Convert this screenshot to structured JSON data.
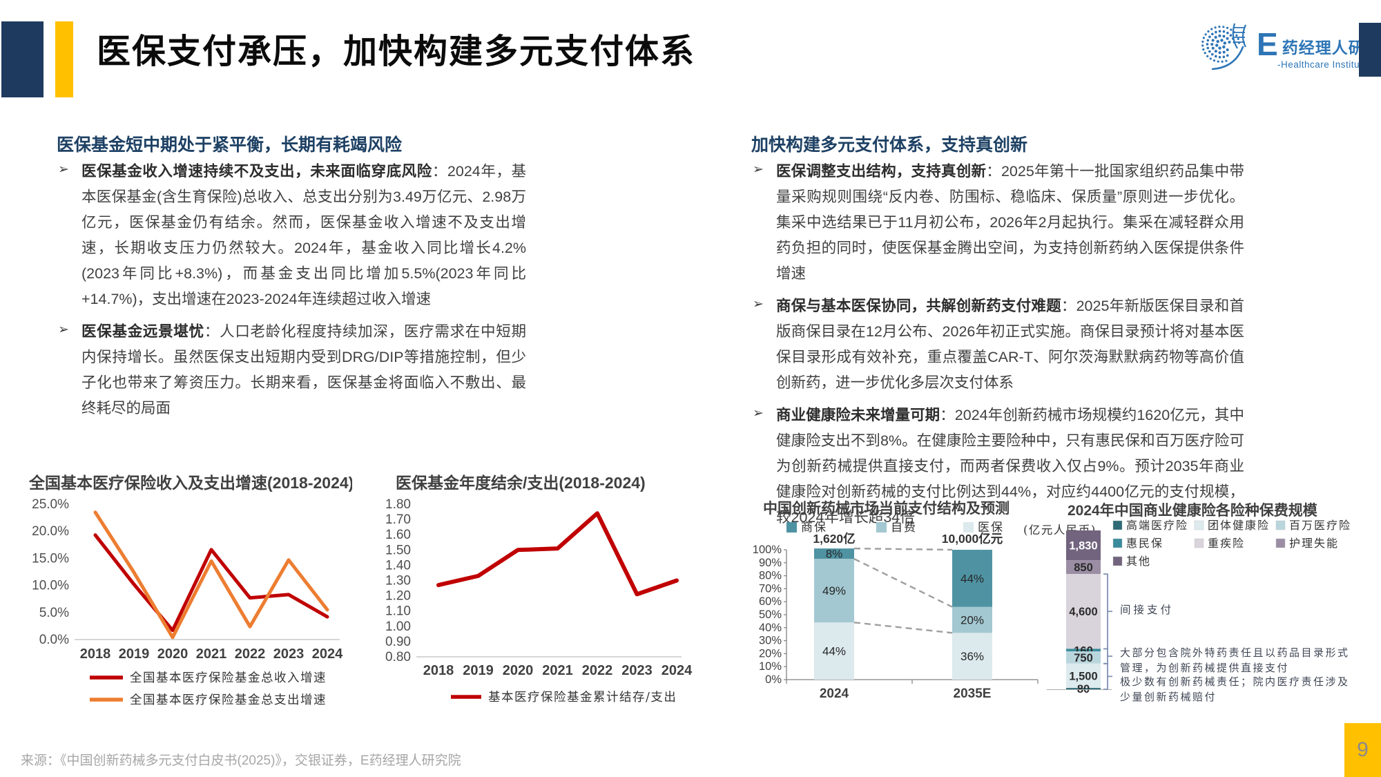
{
  "colors": {
    "navy_block": "#1F3A5F",
    "accent_yellow": "#FFC000",
    "logo_blue": "#2E75B6",
    "heading_blue": "#1E4164",
    "line_red": "#C00000",
    "line_orange": "#ED7D31"
  },
  "header": {
    "title": "医保支付承压，加快构建多元支付体系",
    "logo": {
      "e": "E",
      "cn": "药经理人研究院",
      "en": "-Healthcare Institute"
    }
  },
  "left_column": {
    "heading": "医保基金短中期处于紧平衡，长期有耗竭风险",
    "bullets": [
      {
        "marker": "➢",
        "lead": "医保基金收入增速持续不及支出，未来面临穿底风险",
        "text": "：2024年，基本医保基金(含生育保险)总收入、总支出分别为3.49万亿元、2.98万亿元，医保基金仍有结余。然而，医保基金收入增速不及支出增速，长期收支压力仍然较大。2024年，基金收入同比增长4.2%(2023年同比+8.3%)，而基金支出同比增加5.5%(2023年同比+14.7%)，支出增速在2023-2024年连续超过收入增速"
      },
      {
        "marker": "➢",
        "lead": "医保基金远景堪忧",
        "text": "：人口老龄化程度持续加深，医疗需求在中短期内保持增长。虽然医保支出短期内受到DRG/DIP等措施控制，但少子化也带来了筹资压力。长期来看，医保基金将面临入不敷出、最终耗尽的局面"
      }
    ]
  },
  "right_column": {
    "heading": "加快构建多元支付体系，支持真创新",
    "bullets": [
      {
        "marker": "➢",
        "lead": "医保调整支出结构，支持真创新",
        "text": "：2025年第十一批国家组织药品集中带量采购规则围绕“反内卷、防围标、稳临床、保质量”原则进一步优化。集采中选结果已于11月初公布，2026年2月起执行。集采在减轻群众用药负担的同时，使医保基金腾出空间，为支持创新药纳入医保提供条件增速"
      },
      {
        "marker": "➢",
        "lead": "商保与基本医保协同，共解创新药支付难题",
        "text": "：2025年新版医保目录和首版商保目录在12月公布、2026年初正式实施。商保目录预计将对基本医保目录形成有效补充，重点覆盖CAR-T、阿尔茨海默默病药物等高价值创新药，进一步优化多层次支付体系"
      },
      {
        "marker": "➢",
        "lead": "商业健康险未来增量可期",
        "text": "：2024年创新药械市场规模约1620亿元，其中健康险支出不到8%。在健康险主要险种中，只有惠民保和百万医疗险可为创新药械提供直接支付，而两者保费收入仅占9%。预计2035年商业健康险对创新药械的支付比例达到44%，对应约4400亿元的支付规模，较2024年增长超34倍"
      }
    ]
  },
  "chart_data": [
    {
      "type": "line",
      "title": "全国基本医疗保险收入及支出增速(2018-2024)",
      "x": [
        "2018",
        "2019",
        "2020",
        "2021",
        "2022",
        "2023",
        "2024"
      ],
      "ylim": [
        0,
        25
      ],
      "ystep": 5,
      "ytick_format": "percent1",
      "grid": false,
      "legend_position": "bottom",
      "series": [
        {
          "name": "全国基本医疗保险基金总收入增速",
          "color": "#C00000",
          "values": [
            19.3,
            10.2,
            1.7,
            16.6,
            7.7,
            8.3,
            4.2
          ]
        },
        {
          "name": "全国基本医疗保险基金总支出增速",
          "color": "#ED7D31",
          "values": [
            23.5,
            12.4,
            0.4,
            14.5,
            2.4,
            14.7,
            5.5
          ]
        }
      ]
    },
    {
      "type": "line",
      "title": "医保基金年度结余/支出(2018-2024)",
      "x": [
        "2018",
        "2019",
        "2020",
        "2021",
        "2022",
        "2023",
        "2024"
      ],
      "ylim": [
        0.8,
        1.8
      ],
      "ystep": 0.1,
      "ytick_format": "decimal2",
      "grid": false,
      "legend_position": "bottom",
      "series": [
        {
          "name": "基本医疗保险基金累计结存/支出",
          "color": "#C00000",
          "values": [
            1.27,
            1.33,
            1.5,
            1.51,
            1.74,
            1.21,
            1.3
          ]
        }
      ]
    },
    {
      "type": "bar",
      "subtype": "stacked-100",
      "title": "中国创新药械市场当前支付结构及预测",
      "categories": [
        "2024",
        "2035E"
      ],
      "totals": [
        "1,620亿",
        "10,000亿元"
      ],
      "ylim": [
        0,
        100
      ],
      "ystep": 10,
      "ytick_format": "percent0",
      "legend_order": [
        "商保",
        "自费",
        "医保"
      ],
      "series_bottom_up": [
        {
          "name": "医保",
          "color": "#DCE9ED",
          "values": [
            44,
            36
          ]
        },
        {
          "name": "自费",
          "color": "#A3C8D1",
          "values": [
            49,
            20
          ]
        },
        {
          "name": "商保",
          "color": "#4F93A3",
          "values": [
            8,
            44
          ]
        }
      ]
    },
    {
      "type": "bar",
      "subtype": "single-stacked",
      "title": "2024年中国商业健康险各险种保费规模",
      "unit": "(亿元人民币)",
      "segments_top_down": [
        {
          "name": "其他",
          "value": 1830,
          "label": "1,830",
          "color": "#72647E",
          "label_color": "#ffffff"
        },
        {
          "name": "护理失能",
          "value": 850,
          "label": "850",
          "color": "#9B8EA4",
          "label_color": "#2b2b2b"
        },
        {
          "name": "重疾险",
          "value": 4600,
          "label": "4,600",
          "color": "#D9D4DB",
          "label_color": "#2b2b2b"
        },
        {
          "name": "惠民保",
          "value": 160,
          "label": "160",
          "color": "#3A8B9C",
          "label_color": "#2b2b2b"
        },
        {
          "name": "百万医疗险",
          "value": 750,
          "label": "750",
          "color": "#B9D6DD",
          "label_color": "#2b2b2b"
        },
        {
          "name": "团体健康险",
          "value": 1500,
          "label": "1,500",
          "color": "#DDEAEE",
          "label_color": "#2b2b2b"
        },
        {
          "name": "高端医疗险",
          "value": 80,
          "label": "80",
          "color": "#2E6B76",
          "label_color": "#2b2b2b"
        }
      ],
      "legend": [
        {
          "name": "高端医疗险",
          "color": "#2E6B76"
        },
        {
          "name": "团体健康险",
          "color": "#DDEAEE"
        },
        {
          "name": "百万医疗险",
          "color": "#B9D6DD"
        },
        {
          "name": "惠民保",
          "color": "#3A8B9C"
        },
        {
          "name": "重疾险",
          "color": "#D9D4DB"
        },
        {
          "name": "护理失能",
          "color": "#9B8EA4"
        },
        {
          "name": "其他",
          "color": "#72647E"
        }
      ],
      "annotations": [
        {
          "text": "间接支付",
          "span": [
            "重疾险"
          ]
        },
        {
          "text": "大部分包含院外特药责任且以药品目录形式管理，为创新药械提供直接支付",
          "span": [
            "惠民保",
            "百万医疗险"
          ]
        },
        {
          "text": "极少数有创新药械责任；院内医疗责任涉及少量创新药械赔付",
          "span": [
            "团体健康险",
            "高端医疗险"
          ]
        }
      ]
    }
  ],
  "footer": {
    "source": "来源：《中国创新药械多元支付白皮书(2025)》，交银证券，E药经理人研究院",
    "page": "9"
  }
}
